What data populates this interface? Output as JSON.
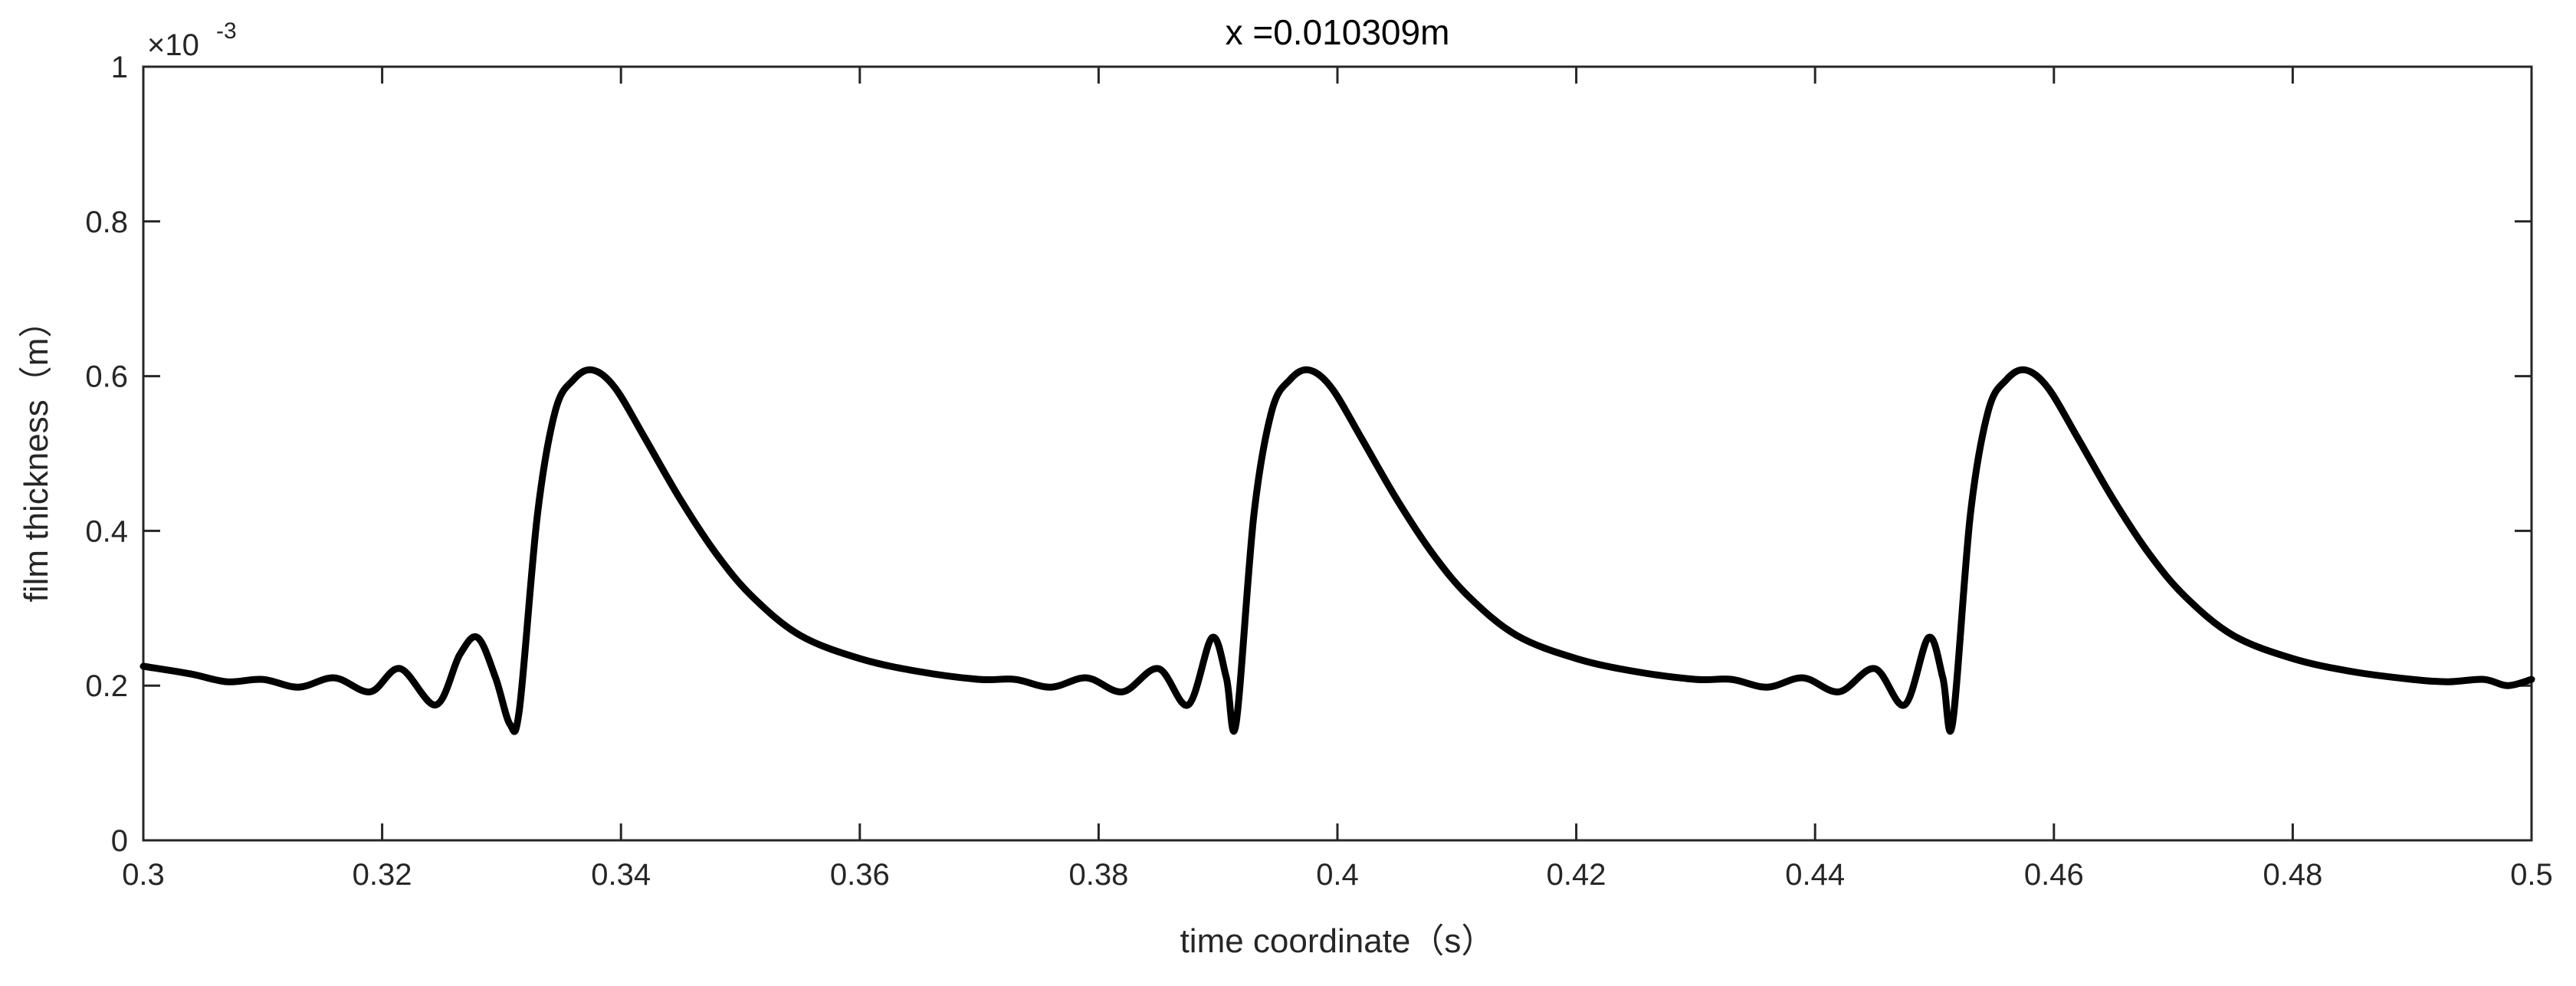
{
  "chart_data": {
    "type": "line",
    "title": "x =0.010309m",
    "xlabel": "time coordinate（s）",
    "ylabel": "film thickness（m）",
    "y_multiplier": "×10",
    "y_exponent": "-3",
    "xlim": [
      0.3,
      0.5
    ],
    "ylim": [
      0,
      0.001
    ],
    "grid": false,
    "x_ticks": [
      "0.3",
      "0.32",
      "0.34",
      "0.36",
      "0.38",
      "0.4",
      "0.42",
      "0.44",
      "0.46",
      "0.48",
      "0.5"
    ],
    "y_ticks": [
      "0",
      "0.2",
      "0.4",
      "0.6",
      "0.8",
      "1"
    ],
    "series_color": "#000000",
    "series": [
      {
        "x": [
          0.3,
          0.304,
          0.307,
          0.31,
          0.313,
          0.316,
          0.319,
          0.3215,
          0.3245,
          0.3265,
          0.328,
          0.3295,
          0.3307,
          0.3315,
          0.333,
          0.3345,
          0.336,
          0.3376,
          0.3395,
          0.342,
          0.345,
          0.348,
          0.351,
          0.355,
          0.36,
          0.365,
          0.37,
          0.373,
          0.376,
          0.379,
          0.382,
          0.385,
          0.3875,
          0.3895,
          0.3907,
          0.3915,
          0.393,
          0.3945,
          0.396,
          0.3976,
          0.3995,
          0.402,
          0.405,
          0.408,
          0.411,
          0.415,
          0.42,
          0.425,
          0.43,
          0.433,
          0.436,
          0.439,
          0.442,
          0.445,
          0.4475,
          0.4495,
          0.4507,
          0.4515,
          0.453,
          0.4545,
          0.456,
          0.4576,
          0.4595,
          0.462,
          0.465,
          0.468,
          0.471,
          0.475,
          0.48,
          0.485,
          0.49,
          0.493,
          0.496,
          0.498,
          0.5
        ],
        "y": [
          0.000225,
          0.000215,
          0.000205,
          0.000208,
          0.000198,
          0.00021,
          0.000192,
          0.000222,
          0.000175,
          0.00024,
          0.000262,
          0.00021,
          0.00015,
          0.00017,
          0.00042,
          0.000555,
          0.000595,
          0.000608,
          0.000585,
          0.00052,
          0.00044,
          0.00037,
          0.000315,
          0.000265,
          0.000235,
          0.000218,
          0.000208,
          0.000208,
          0.000198,
          0.00021,
          0.000192,
          0.000222,
          0.000175,
          0.000262,
          0.00021,
          0.00015,
          0.00042,
          0.000555,
          0.000595,
          0.000608,
          0.000585,
          0.00052,
          0.00044,
          0.00037,
          0.000315,
          0.000265,
          0.000235,
          0.000218,
          0.000208,
          0.000208,
          0.000198,
          0.00021,
          0.000192,
          0.000222,
          0.000175,
          0.000262,
          0.00021,
          0.00015,
          0.00042,
          0.000555,
          0.000595,
          0.000608,
          0.000585,
          0.00052,
          0.00044,
          0.00037,
          0.000315,
          0.000265,
          0.000235,
          0.000218,
          0.000208,
          0.000205,
          0.000208,
          0.0002,
          0.000208
        ]
      }
    ]
  }
}
